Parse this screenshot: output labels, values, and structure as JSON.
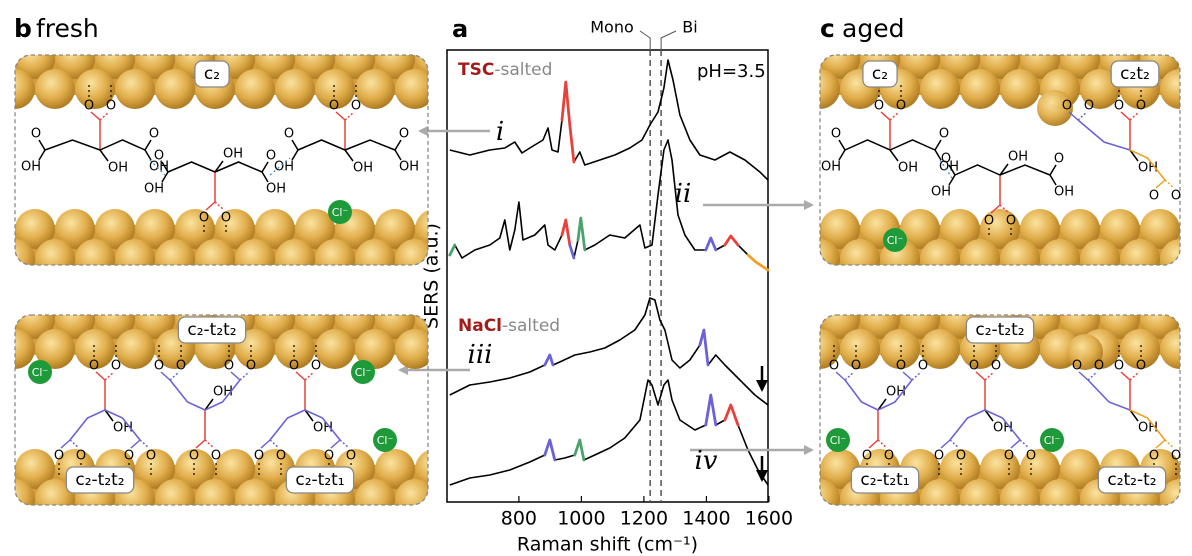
{
  "chart_data": {
    "type": "line",
    "label": "a",
    "x_label": "Raman shift (cm⁻¹)",
    "y_label": "SERS (a.u.)",
    "xlim": [
      570,
      1597
    ],
    "xticks": [
      800,
      1000,
      1200,
      1400,
      1600
    ],
    "ylim": [
      0,
      45.2
    ],
    "annotations": {
      "tsc": "TSC",
      "tsc_suffix": "-salted",
      "nacl": "NaCl",
      "nacl_suffix": "-salted",
      "ph": "pH=3.5"
    },
    "reference_lines": [
      {
        "label": "Mono",
        "x": 1220
      },
      {
        "label": "Bi",
        "x": 1255
      }
    ],
    "series": [
      {
        "name": "i",
        "color": "#000000",
        "x": [
          579,
          643,
          707,
          755,
          787,
          810,
          835,
          877,
          893,
          906,
          925,
          938,
          950,
          963,
          976,
          995,
          1011,
          1059,
          1107,
          1155,
          1194,
          1219,
          1245,
          1264,
          1277,
          1293,
          1315,
          1347,
          1379,
          1427,
          1475,
          1523,
          1571,
          1597
        ],
        "values": [
          35.2,
          34.7,
          35.2,
          35.4,
          36.0,
          34.9,
          35.4,
          36.2,
          37.4,
          35.2,
          35.0,
          38.2,
          42.0,
          37.7,
          34.0,
          35.0,
          33.7,
          34.2,
          34.7,
          35.4,
          36.2,
          37.7,
          39.0,
          41.4,
          44.2,
          42.2,
          38.7,
          36.2,
          34.7,
          34.2,
          35.0,
          34.2,
          33.0,
          32.2
        ],
        "highlights": [
          {
            "x": [
              938,
              976
            ],
            "color": "#e8413c"
          }
        ]
      },
      {
        "name": "ii",
        "color": "#000000",
        "x": [
          579,
          595,
          618,
          659,
          707,
          739,
          755,
          771,
          787,
          800,
          813,
          851,
          883,
          893,
          915,
          938,
          950,
          963,
          976,
          989,
          998,
          1011,
          1043,
          1091,
          1139,
          1187,
          1203,
          1226,
          1245,
          1264,
          1277,
          1290,
          1309,
          1331,
          1363,
          1398,
          1414,
          1430,
          1459,
          1478,
          1501,
          1533,
          1558,
          1597
        ],
        "values": [
          24.7,
          25.7,
          24.4,
          25.2,
          25.7,
          26.4,
          28.2,
          25.2,
          27.2,
          30.0,
          26.2,
          26.7,
          27.7,
          25.7,
          25.2,
          26.7,
          28.2,
          25.7,
          24.4,
          26.2,
          28.4,
          25.2,
          25.7,
          26.7,
          26.4,
          27.7,
          25.4,
          25.7,
          30.7,
          35.2,
          36.2,
          34.2,
          28.7,
          26.7,
          25.2,
          25.2,
          26.4,
          25.2,
          25.7,
          26.6,
          25.7,
          24.7,
          24.0,
          23.2
        ],
        "highlights": [
          {
            "x": [
              579,
              595
            ],
            "color": "#4aa36a"
          },
          {
            "x": [
              938,
              963
            ],
            "color": "#e8413c"
          },
          {
            "x": [
              963,
              976
            ],
            "color": "#6b62d6"
          },
          {
            "x": [
              989,
              1011
            ],
            "color": "#4aa36a"
          },
          {
            "x": [
              1398,
              1430
            ],
            "color": "#6b62d6"
          },
          {
            "x": [
              1459,
              1501
            ],
            "color": "#e8413c"
          },
          {
            "x": [
              1533,
              1597
            ],
            "color": "#f0a020"
          }
        ]
      },
      {
        "name": "iii",
        "color": "#000000",
        "x": [
          579,
          643,
          707,
          771,
          835,
          883,
          899,
          909,
          931,
          979,
          1027,
          1075,
          1123,
          1171,
          1203,
          1219,
          1235,
          1251,
          1267,
          1290,
          1315,
          1347,
          1379,
          1392,
          1405,
          1430,
          1459,
          1507,
          1555,
          1597
        ],
        "values": [
          10.7,
          11.7,
          12.0,
          12.4,
          13.0,
          13.7,
          14.7,
          13.7,
          14.0,
          14.7,
          15.0,
          15.4,
          16.2,
          17.2,
          18.7,
          20.4,
          20.2,
          18.2,
          17.2,
          14.2,
          13.4,
          14.2,
          15.7,
          17.2,
          13.7,
          14.7,
          13.7,
          12.2,
          10.7,
          9.7
        ],
        "highlights": [
          {
            "x": [
              883,
              909
            ],
            "color": "#6b62d6"
          },
          {
            "x": [
              1379,
              1405
            ],
            "color": "#6b62d6"
          }
        ]
      },
      {
        "name": "iv",
        "color": "#000000",
        "x": [
          579,
          643,
          707,
          771,
          835,
          883,
          899,
          915,
          947,
          979,
          995,
          1008,
          1043,
          1091,
          1139,
          1187,
          1213,
          1226,
          1245,
          1264,
          1277,
          1290,
          1315,
          1363,
          1398,
          1414,
          1430,
          1459,
          1478,
          1501,
          1533,
          1565,
          1597
        ],
        "values": [
          1.7,
          2.4,
          2.7,
          3.2,
          4.0,
          4.7,
          6.2,
          4.2,
          4.4,
          4.7,
          6.2,
          4.2,
          4.7,
          5.4,
          6.4,
          8.2,
          12.2,
          11.7,
          9.7,
          11.7,
          12.2,
          10.2,
          8.2,
          7.2,
          7.7,
          10.7,
          7.7,
          8.2,
          9.7,
          7.7,
          5.2,
          3.2,
          1.7
        ],
        "highlights": [
          {
            "x": [
              883,
              915
            ],
            "color": "#6b62d6"
          },
          {
            "x": [
              979,
              1008
            ],
            "color": "#4aa36a"
          },
          {
            "x": [
              1398,
              1430
            ],
            "color": "#6b62d6"
          },
          {
            "x": [
              1459,
              1501
            ],
            "color": "#e8413c"
          }
        ]
      }
    ]
  },
  "panel_b": {
    "label": "b",
    "title": "fresh",
    "top_tags": [
      "c₂"
    ],
    "bottom_tags": [
      "c₂-t₂t₂",
      "c₂-t₂t₂",
      "c₂-t₂t₁"
    ]
  },
  "panel_c": {
    "label": "c",
    "title": "aged",
    "top_tags": [
      "c₂",
      "c₂t₂"
    ],
    "bottom_tags": [
      "c₂-t₂t₂",
      "c₂-t₂t₁",
      "c₂t₂-t₂"
    ]
  },
  "atoms": {
    "O": "O",
    "OH": "OH",
    "Cl": "Cl⁻"
  }
}
